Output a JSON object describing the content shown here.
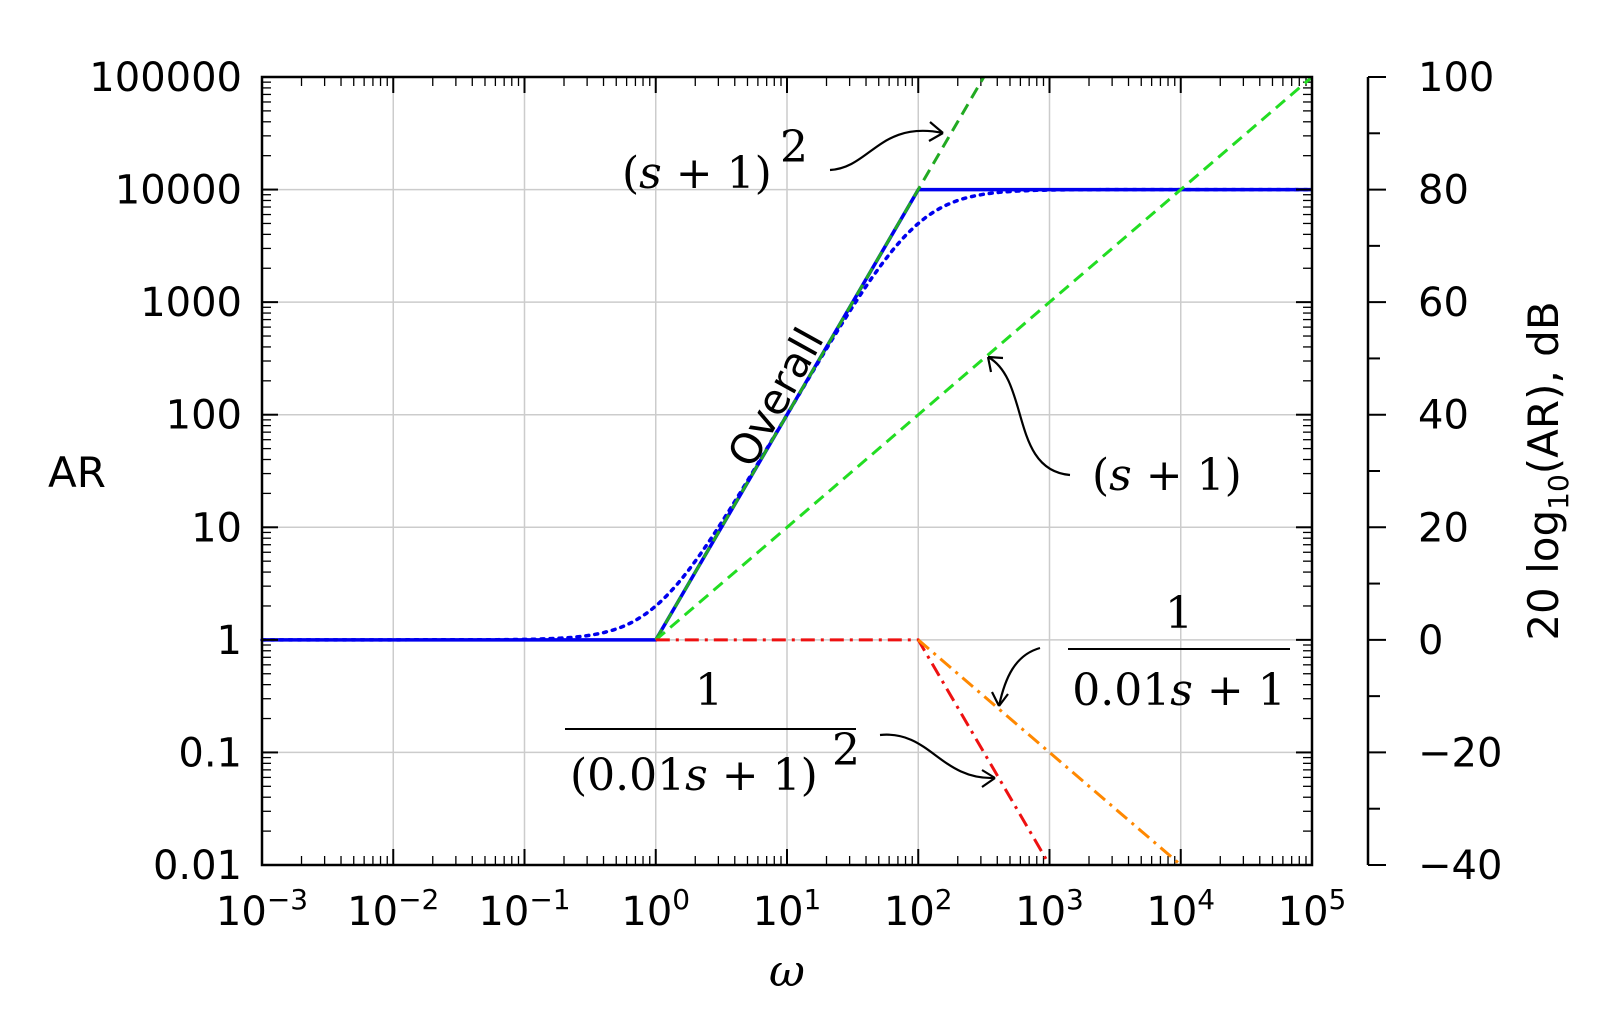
{
  "chart_data": {
    "type": "line",
    "xscale": "log",
    "yscale": "log",
    "xlim": [
      0.001,
      100000
    ],
    "ylim": [
      0.01,
      100000
    ],
    "xlabel": "ω",
    "ylabel": "AR",
    "y2label": "20 log10(AR), dB",
    "y2lim": [
      -40,
      100
    ],
    "grid": true,
    "x_ticks": [
      {
        "value": 0.001,
        "base": "10",
        "exp": "−3"
      },
      {
        "value": 0.01,
        "base": "10",
        "exp": "−2"
      },
      {
        "value": 0.1,
        "base": "10",
        "exp": "−1"
      },
      {
        "value": 1,
        "base": "10",
        "exp": "0"
      },
      {
        "value": 10,
        "base": "10",
        "exp": "1"
      },
      {
        "value": 100,
        "base": "10",
        "exp": "2"
      },
      {
        "value": 1000,
        "base": "10",
        "exp": "3"
      },
      {
        "value": 10000,
        "base": "10",
        "exp": "4"
      },
      {
        "value": 100000,
        "base": "10",
        "exp": "5"
      }
    ],
    "y_ticks": [
      {
        "value": 0.01,
        "label": "0.01"
      },
      {
        "value": 0.1,
        "label": "0.1"
      },
      {
        "value": 1,
        "label": "1"
      },
      {
        "value": 10,
        "label": "10"
      },
      {
        "value": 100,
        "label": "100"
      },
      {
        "value": 1000,
        "label": "1000"
      },
      {
        "value": 10000,
        "label": "10000"
      },
      {
        "value": 100000,
        "label": "100000"
      }
    ],
    "y2_ticks": [
      {
        "value": 100,
        "label": "100"
      },
      {
        "value": 80,
        "label": "80"
      },
      {
        "value": 60,
        "label": "60"
      },
      {
        "value": 40,
        "label": "40"
      },
      {
        "value": 20,
        "label": "20"
      },
      {
        "value": 0,
        "label": "0"
      },
      {
        "value": -20,
        "label": "−20"
      },
      {
        "value": -40,
        "label": "−40"
      }
    ],
    "series": [
      {
        "name": "Overall",
        "style": "solid",
        "color": "#0000ee",
        "x": [
          0.001,
          1,
          100,
          100000
        ],
        "y": [
          1,
          1,
          10000,
          10000
        ]
      },
      {
        "name": "",
        "style": "dotted",
        "color": "#0000ee",
        "function": "exact"
      },
      {
        "name": "(s+1)^2",
        "style": "dashed",
        "color": "#22aa22",
        "x": [
          1,
          316
        ],
        "y": [
          1,
          100000
        ]
      },
      {
        "name": "(s+1)",
        "style": "dashed",
        "color": "#22dd22",
        "x": [
          1,
          100000
        ],
        "y": [
          1,
          100000
        ]
      },
      {
        "name": "1/(0.01s+1)^2",
        "style": "dashdot",
        "color": "#ee1111",
        "x": [
          1,
          100,
          1000
        ],
        "y": [
          1,
          1,
          0.01
        ]
      },
      {
        "name": "1/(0.01s+1)",
        "style": "dashdot",
        "color": "#ff8800",
        "x": [
          100,
          10000
        ],
        "y": [
          1,
          0.01
        ]
      }
    ],
    "annotations": {
      "overall": "Overall",
      "sq_paren": "(s + 1)",
      "sq_exp": "2",
      "lin": "(s + 1)",
      "frac1_num": "1",
      "frac1_den": "0.01s + 1",
      "frac2_num": "1",
      "frac2_den": "(0.01s + 1)",
      "frac2_exp": "2"
    }
  },
  "colors": {
    "blue": "#0000ee",
    "green_dark": "#22aa22",
    "green_light": "#22dd22",
    "red": "#ee1111",
    "orange": "#ff8800",
    "grid": "#cccccc"
  }
}
